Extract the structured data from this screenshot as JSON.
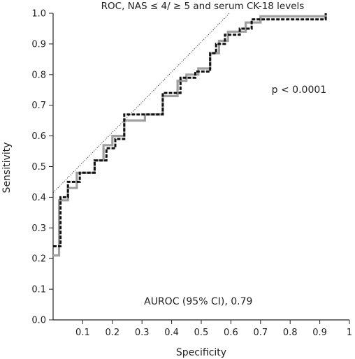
{
  "chart_data": {
    "type": "line",
    "title": "ROC, NAS ≤ 4/ ≥ 5 and serum CK-18 levels",
    "xlabel": "Specificity",
    "ylabel": "Sensitivity",
    "xlim": [
      0,
      1
    ],
    "ylim": [
      0,
      1
    ],
    "x_ticks": [
      "0.1",
      "0.2",
      "0.3",
      "0.4",
      "0.5",
      "0.6",
      "0.7",
      "0.8",
      "0.9",
      "1"
    ],
    "y_ticks": [
      "0.0",
      "0.1",
      "0.2",
      "0.3",
      "0.4",
      "0.5",
      "0.6",
      "0.7",
      "0.8",
      "0.9",
      "1.0"
    ],
    "grid": false,
    "annotations": [
      {
        "text": "p < 0.0001",
        "x": 0.83,
        "y": 0.74
      },
      {
        "text": "AUROC (95% CI), 0.79",
        "x": 0.49,
        "y": 0.05
      }
    ],
    "reference_line": {
      "style": "dotted",
      "points": [
        [
          0,
          0.415
        ],
        [
          0.595,
          1.0
        ]
      ]
    },
    "series": [
      {
        "style": "solid",
        "color": "#a0a0a0",
        "points": [
          [
            0,
            0.21
          ],
          [
            0.02,
            0.21
          ],
          [
            0.02,
            0.39
          ],
          [
            0.05,
            0.39
          ],
          [
            0.05,
            0.43
          ],
          [
            0.08,
            0.43
          ],
          [
            0.08,
            0.48
          ],
          [
            0.14,
            0.48
          ],
          [
            0.14,
            0.52
          ],
          [
            0.17,
            0.52
          ],
          [
            0.17,
            0.57
          ],
          [
            0.2,
            0.57
          ],
          [
            0.2,
            0.6
          ],
          [
            0.24,
            0.6
          ],
          [
            0.24,
            0.65
          ],
          [
            0.31,
            0.65
          ],
          [
            0.31,
            0.67
          ],
          [
            0.37,
            0.67
          ],
          [
            0.37,
            0.73
          ],
          [
            0.42,
            0.73
          ],
          [
            0.42,
            0.78
          ],
          [
            0.45,
            0.78
          ],
          [
            0.45,
            0.8
          ],
          [
            0.49,
            0.8
          ],
          [
            0.49,
            0.82
          ],
          [
            0.53,
            0.82
          ],
          [
            0.53,
            0.87
          ],
          [
            0.56,
            0.87
          ],
          [
            0.56,
            0.91
          ],
          [
            0.59,
            0.91
          ],
          [
            0.59,
            0.94
          ],
          [
            0.65,
            0.94
          ],
          [
            0.65,
            0.97
          ],
          [
            0.7,
            0.97
          ],
          [
            0.7,
            0.99
          ],
          [
            0.92,
            0.99
          ],
          [
            0.92,
            1.0
          ]
        ]
      },
      {
        "style": "dashed",
        "color": "#111111",
        "points": [
          [
            0,
            0.24
          ],
          [
            0.025,
            0.24
          ],
          [
            0.025,
            0.4
          ],
          [
            0.05,
            0.4
          ],
          [
            0.05,
            0.45
          ],
          [
            0.09,
            0.45
          ],
          [
            0.09,
            0.48
          ],
          [
            0.14,
            0.48
          ],
          [
            0.14,
            0.52
          ],
          [
            0.18,
            0.52
          ],
          [
            0.18,
            0.56
          ],
          [
            0.21,
            0.56
          ],
          [
            0.21,
            0.59
          ],
          [
            0.24,
            0.59
          ],
          [
            0.24,
            0.67
          ],
          [
            0.37,
            0.67
          ],
          [
            0.37,
            0.74
          ],
          [
            0.43,
            0.74
          ],
          [
            0.43,
            0.79
          ],
          [
            0.48,
            0.79
          ],
          [
            0.48,
            0.81
          ],
          [
            0.53,
            0.81
          ],
          [
            0.53,
            0.87
          ],
          [
            0.55,
            0.87
          ],
          [
            0.55,
            0.9
          ],
          [
            0.58,
            0.9
          ],
          [
            0.58,
            0.93
          ],
          [
            0.63,
            0.93
          ],
          [
            0.63,
            0.95
          ],
          [
            0.67,
            0.95
          ],
          [
            0.67,
            0.98
          ],
          [
            0.92,
            0.98
          ],
          [
            0.92,
            1.0
          ]
        ]
      }
    ]
  }
}
